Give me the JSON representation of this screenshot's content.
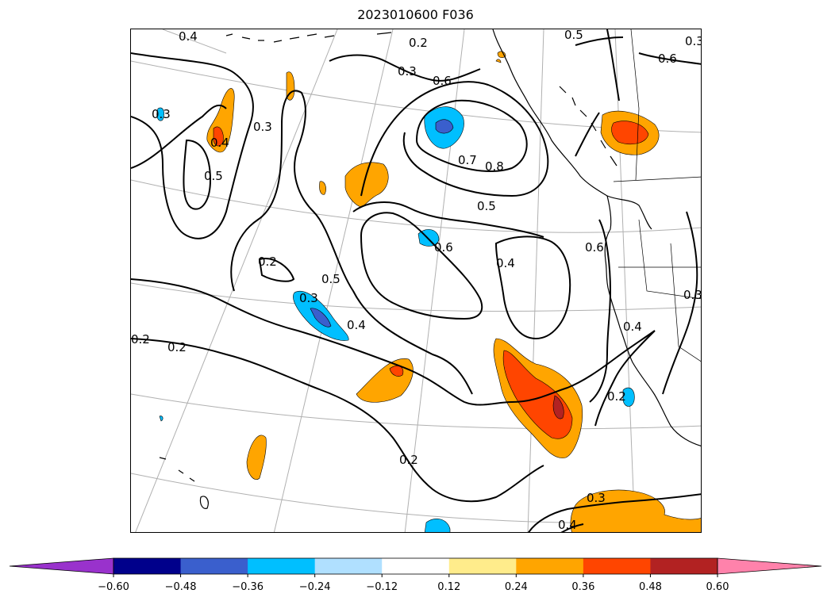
{
  "title": "2023010600 F036",
  "colorbar": {
    "ticks": [
      "-0.60",
      "-0.48",
      "-0.36",
      "-0.24",
      "-0.12",
      "0.12",
      "0.24",
      "0.36",
      "0.48",
      "0.60"
    ],
    "colors": [
      "#9932cc",
      "#00008b",
      "#3a5fcd",
      "#00bfff",
      "#b0e0ff",
      "#ffffff",
      "#ffec8b",
      "#ffa500",
      "#ff4500",
      "#b22222",
      "#ff82ab"
    ]
  },
  "contour_labels": [
    "0.4",
    "0.2",
    "0.3",
    "0.6",
    "0.5",
    "0.3",
    "0.4",
    "0.5",
    "0.3",
    "0.3",
    "0.6",
    "0.7",
    "0.8",
    "0.5",
    "0.6",
    "0.4",
    "0.6",
    "0.2",
    "0.3",
    "0.5",
    "0.4",
    "0.2",
    "0.2",
    "0.4",
    "0.3",
    "0.2",
    "0.2",
    "0.3",
    "0.4"
  ]
}
